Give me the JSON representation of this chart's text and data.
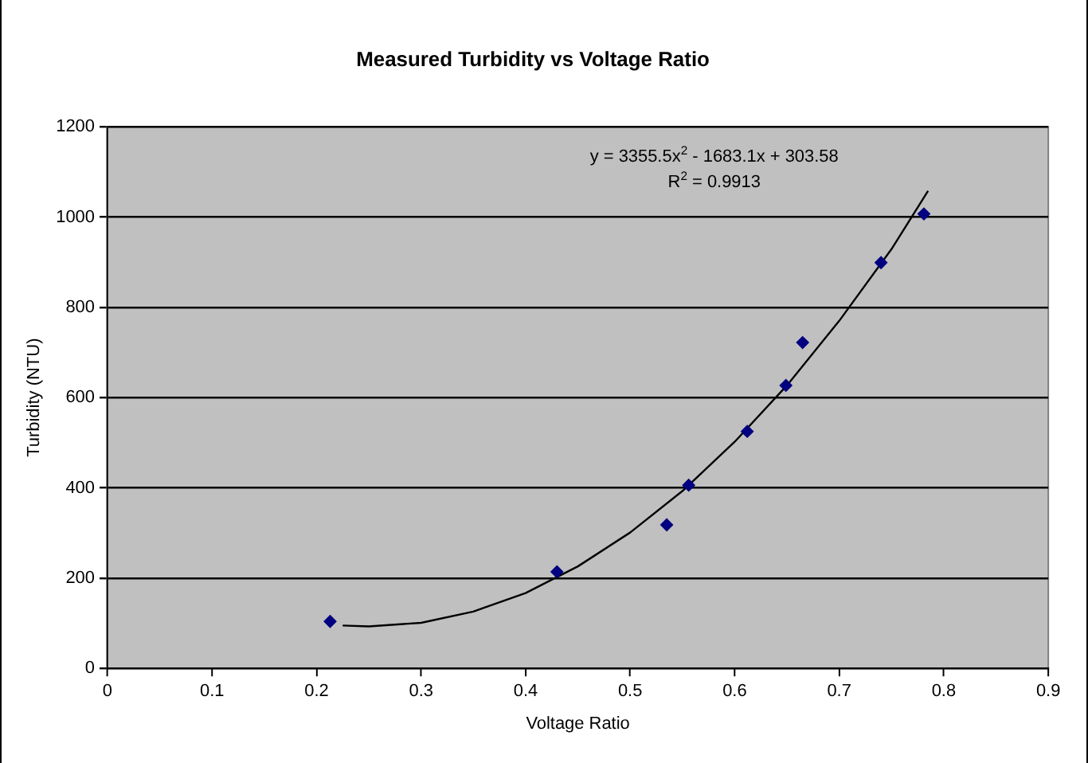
{
  "chart_data": {
    "type": "scatter",
    "title": "Measured Turbidity vs Voltage Ratio",
    "xlabel": "Voltage Ratio",
    "ylabel": "Turbidity (NTU)",
    "x": [
      0.213,
      0.43,
      0.535,
      0.556,
      0.612,
      0.649,
      0.665,
      0.74,
      0.781
    ],
    "series": [
      {
        "color": "#000080",
        "marker": "diamond",
        "values": [
          104,
          214,
          318,
          406,
          525,
          627,
          722,
          899,
          1007
        ]
      },
      {
        "type": "line",
        "color": "#000000",
        "marker": "none",
        "x": [
          0.225,
          0.25,
          0.3,
          0.35,
          0.4,
          0.45,
          0.5,
          0.55,
          0.6,
          0.65,
          0.7,
          0.75,
          0.785
        ],
        "values": [
          95,
          93,
          101,
          126,
          167,
          226,
          301,
          393,
          502,
          627,
          770,
          929,
          1058
        ]
      }
    ],
    "xlim": [
      0,
      0.9
    ],
    "xticks": [
      0,
      0.1,
      0.2,
      0.3,
      0.4,
      0.5,
      0.6,
      0.7,
      0.8,
      0.9
    ],
    "ylim": [
      0,
      1200
    ],
    "yticks": [
      0,
      200,
      400,
      600,
      800,
      1000,
      1200
    ],
    "grid": "y",
    "legend": false,
    "annotations": [
      "y = 3355.5x$^{2}$ - 1683.1x + 303.58",
      "R$^{2}$ = 0.9913"
    ]
  }
}
